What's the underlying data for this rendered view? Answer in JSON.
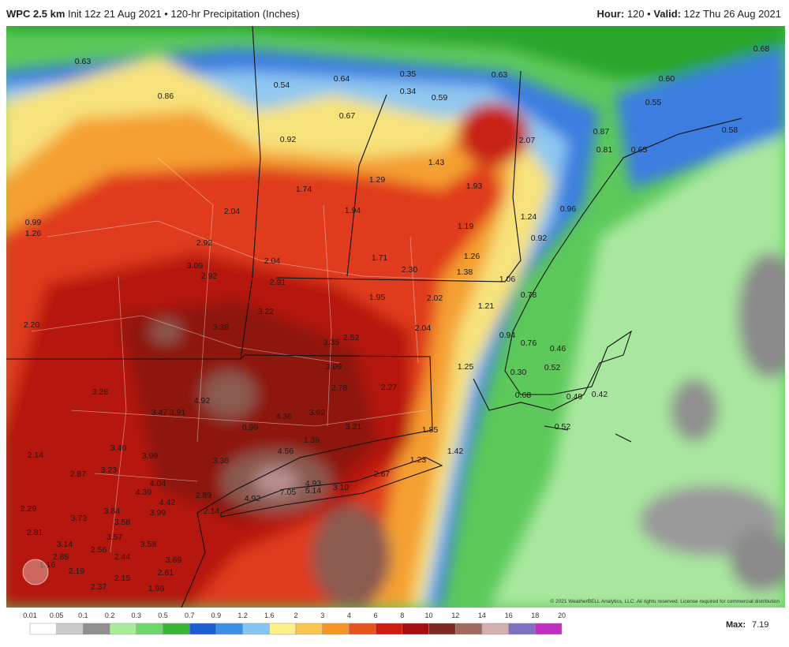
{
  "header": {
    "model": "WPC 2.5 km",
    "subtitle": "Init 12z 21 Aug 2021 • 120-hr Precipitation (Inches)",
    "hour_label": "Hour:",
    "hour": "120 •",
    "valid_label": "Valid:",
    "valid": "12z Thu 26 Aug 2021"
  },
  "map": {
    "labels": [
      "0.63",
      "0.86",
      "0.99",
      "1.26",
      "0.54",
      "0.64",
      "0.35",
      "0.34",
      "0.67",
      "0.59",
      "0.63",
      "0.68",
      "0.60",
      "0.55",
      "0.92",
      "0.87",
      "0.81",
      "0.65",
      "0.58",
      "2.07",
      "1.43",
      "1.93",
      "1.29",
      "1.74",
      "2.04",
      "1.94",
      "1.19",
      "1.24",
      "0.96",
      "0.92",
      "2.92",
      "3.09",
      "2.92",
      "2.04",
      "1.71",
      "2.30",
      "1.26",
      "1.38",
      "1.06",
      "2.91",
      "1.95",
      "2.02",
      "1.21",
      "0.78",
      "3.22",
      "3.38",
      "2.20",
      "2.04",
      "0.94",
      "0.76",
      "3.35",
      "2.52",
      "0.46",
      "3.09",
      "1.25",
      "0.52",
      "0.30",
      "3.28",
      "2.78",
      "2.27",
      "4.92",
      "0.68",
      "0.49",
      "0.42",
      "3.47",
      "3.91",
      "4.36",
      "3.62",
      "0.99",
      "3.21",
      "0.52",
      "1.85",
      "1.39",
      "2.14",
      "3.40",
      "3.99",
      "4.56",
      "1.42",
      "3.36",
      "1.23",
      "2.87",
      "3.23",
      "4.04",
      "2.67",
      "4.93",
      "4.39",
      "5.14",
      "3.10",
      "7.05",
      "4.92",
      "2.89",
      "4.42",
      "3.84",
      "2.29",
      "3.99",
      "2.14",
      "3.73",
      "3.58",
      "2.81",
      "3.57",
      "3.14",
      "3.58",
      "2.56",
      "2.85",
      "2.44",
      "3.69",
      "1.16",
      "2.19",
      "2.61",
      "2.15",
      "2.37",
      "1.96"
    ],
    "copyright": "© 2021 WeatherBELL Analytics, LLC. All rights reserved. License required for commercial distribution"
  },
  "legend": {
    "ticks": [
      0.01,
      0.05,
      0.1,
      0.2,
      0.3,
      0.5,
      0.7,
      0.9,
      1.2,
      1.6,
      2,
      3,
      4,
      6,
      8,
      10,
      12,
      14,
      16,
      18,
      20
    ],
    "colors": [
      "#ffffff",
      "#c9c9c9",
      "#8f8f8f",
      "#a8ec9c",
      "#6ed66a",
      "#39b539",
      "#1c5ed1",
      "#3d8fe6",
      "#86c5f2",
      "#fbef8a",
      "#f8c54e",
      "#f39624",
      "#e8521c",
      "#d01c10",
      "#a50f0f",
      "#7b2a22",
      "#a06a60",
      "#d2b0b0",
      "#8070c0",
      "#c030c0"
    ],
    "max_label": "Max:",
    "max": "7.19"
  }
}
